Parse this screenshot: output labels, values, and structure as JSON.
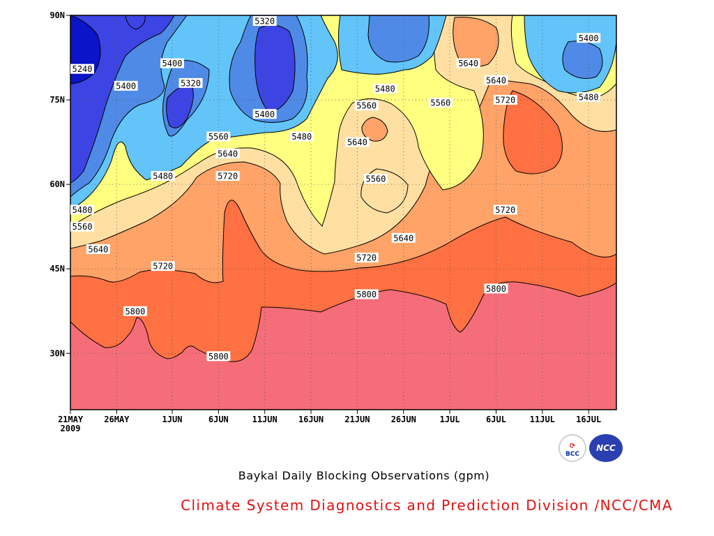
{
  "chart_data": {
    "type": "heatmap",
    "subtype": "filled-contour",
    "title": "Baykal Daily Blocking Observations (gpm)",
    "x": {
      "kind": "date",
      "start": "2009-05-21",
      "end": "2009-07-19",
      "tick_labels": [
        "21MAY",
        "26MAY",
        "1JUN",
        "6JUN",
        "11JUN",
        "16JUN",
        "21JUN",
        "26JUN",
        "1JUL",
        "6JUL",
        "11JUL",
        "16JUL"
      ],
      "tick_values": [
        "2009-05-21",
        "2009-05-26",
        "2009-06-01",
        "2009-06-06",
        "2009-06-11",
        "2009-06-16",
        "2009-06-21",
        "2009-06-26",
        "2009-07-01",
        "2009-07-06",
        "2009-07-11",
        "2009-07-16"
      ],
      "year_label": "2009"
    },
    "y": {
      "kind": "latitude",
      "range": [
        20,
        90
      ],
      "ticks": [
        30,
        45,
        60,
        75,
        90
      ],
      "tick_labels": [
        "30N",
        "45N",
        "60N",
        "75N",
        "90N"
      ]
    },
    "contour_levels": [
      5240,
      5320,
      5400,
      5480,
      5560,
      5640,
      5720,
      5800
    ],
    "colors": {
      "below_5240": "#0b14c8",
      "5240_5320": "#3d44e4",
      "5320_5400": "#4f8ae6",
      "5400_5480": "#62c4f9",
      "5480_5560": "#ffff80",
      "5560_5640": "#ffe0a2",
      "5640_5720": "#ffa368",
      "5720_5800": "#ff7042",
      "above_5800": "#f56d78"
    },
    "grid": true,
    "contour_labels": [
      {
        "value": "5240",
        "date": "2009-05-21",
        "lat": 80.5
      },
      {
        "value": "5320",
        "date": "2009-06-11",
        "lat": 89
      },
      {
        "value": "5400",
        "date": "2009-06-01",
        "lat": 81.5
      },
      {
        "value": "5400",
        "date": "2009-05-27",
        "lat": 77.5
      },
      {
        "value": "5320",
        "date": "2009-06-03",
        "lat": 78
      },
      {
        "value": "5400",
        "date": "2009-06-11",
        "lat": 72.5
      },
      {
        "value": "5480",
        "date": "2009-06-15",
        "lat": 68.5
      },
      {
        "value": "5560",
        "date": "2009-06-06",
        "lat": 68.5
      },
      {
        "value": "5640",
        "date": "2009-06-07",
        "lat": 65.5
      },
      {
        "value": "5480",
        "date": "2009-05-31",
        "lat": 61.5
      },
      {
        "value": "5720",
        "date": "2009-06-07",
        "lat": 61.5
      },
      {
        "value": "5480",
        "date": "2009-05-22",
        "lat": 55.5
      },
      {
        "value": "5560",
        "date": "2009-05-22",
        "lat": 52.5
      },
      {
        "value": "5640",
        "date": "2009-05-24",
        "lat": 48.5
      },
      {
        "value": "5720",
        "date": "2009-05-31",
        "lat": 45.5
      },
      {
        "value": "5800",
        "date": "2009-05-28",
        "lat": 37.5
      },
      {
        "value": "5800",
        "date": "2009-06-06",
        "lat": 29.5
      },
      {
        "value": "5480",
        "date": "2009-06-24",
        "lat": 77
      },
      {
        "value": "5560",
        "date": "2009-06-22",
        "lat": 74
      },
      {
        "value": "5640",
        "date": "2009-06-21",
        "lat": 67.5
      },
      {
        "value": "5560",
        "date": "2009-06-23",
        "lat": 61
      },
      {
        "value": "5640",
        "date": "2009-06-26",
        "lat": 50.5
      },
      {
        "value": "5720",
        "date": "2009-06-22",
        "lat": 47
      },
      {
        "value": "5800",
        "date": "2009-06-22",
        "lat": 40.5
      },
      {
        "value": "5560",
        "date": "2009-06-30",
        "lat": 74.5
      },
      {
        "value": "5640",
        "date": "2009-07-03",
        "lat": 81.5
      },
      {
        "value": "5640",
        "date": "2009-07-06",
        "lat": 78.5
      },
      {
        "value": "5720",
        "date": "2009-07-07",
        "lat": 75
      },
      {
        "value": "5720",
        "date": "2009-07-07",
        "lat": 55.5
      },
      {
        "value": "5800",
        "date": "2009-07-06",
        "lat": 41.5
      },
      {
        "value": "5400",
        "date": "2009-07-16",
        "lat": 86
      },
      {
        "value": "5480",
        "date": "2009-07-16",
        "lat": 75.5
      }
    ]
  },
  "caption": {
    "title": "Baykal Daily Blocking Observations (gpm)",
    "organization": "Climate System Diagnostics and Prediction Division /NCC/CMA"
  },
  "logos": {
    "left": {
      "icon": "bcc-logo",
      "text": "BCC"
    },
    "right": {
      "icon": "ncc-logo",
      "text": "NCC"
    }
  }
}
